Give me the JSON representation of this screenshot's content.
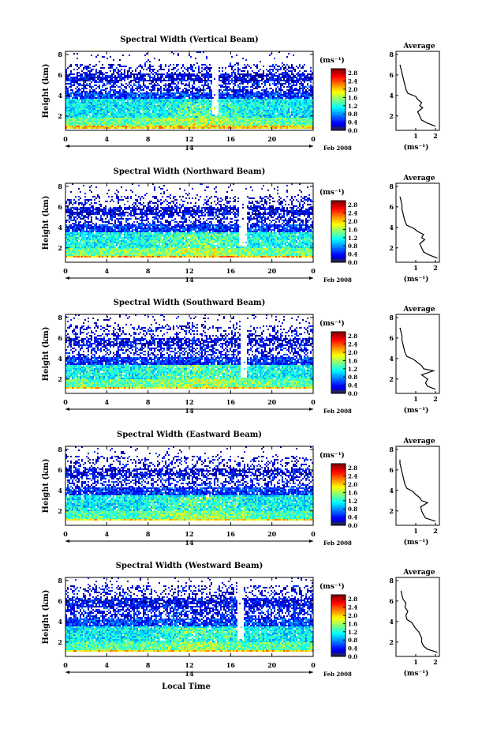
{
  "chart_data": [
    {
      "type": "heatmap",
      "title": "Spectral Width (Vertical Beam)",
      "ylabel": "Height (km)",
      "x_ticks": [
        "0",
        "4",
        "8",
        "12",
        "16",
        "20",
        "0"
      ],
      "y_ticks": [
        "2",
        "4",
        "6",
        "8"
      ],
      "xlim": [
        0,
        24
      ],
      "ylim": [
        0.6,
        8.3
      ],
      "date_day": "14",
      "date_label": "Feb 2008",
      "colorbar_unit": "(ms⁻¹)",
      "colorbar_ticks": [
        "0.0",
        "0.4",
        "0.8",
        "1.2",
        "1.6",
        "2.0",
        "2.4",
        "2.8"
      ],
      "colorbar_range": [
        0,
        3.0
      ],
      "average": {
        "title": "Average",
        "xlabel": "(ms⁻¹)",
        "x_ticks": [
          "1",
          "2"
        ],
        "y_ticks": [
          "2",
          "4",
          "6",
          "8"
        ],
        "xlim": [
          0,
          2.2
        ],
        "ylim": [
          0.6,
          8.3
        ],
        "height_km": [
          1.0,
          1.3,
          1.6,
          2.0,
          2.4,
          2.8,
          3.0,
          3.3,
          3.6,
          3.9,
          4.2,
          4.6,
          5.0,
          5.4,
          5.8,
          6.2,
          6.6,
          7.0
        ],
        "width_ms": [
          2.0,
          1.6,
          1.3,
          1.2,
          1.1,
          1.35,
          1.2,
          1.3,
          1.1,
          1.0,
          0.6,
          0.5,
          0.45,
          0.4,
          0.35,
          0.3,
          0.25,
          0.2
        ]
      },
      "field": {
        "base_height_km": 0.8,
        "near_ground_boost": 1.6,
        "layer_km": [
          {
            "from": 0.8,
            "to": 1.8,
            "mean": 1.4,
            "density": 1.0
          },
          {
            "from": 1.8,
            "to": 3.7,
            "mean": 1.1,
            "density": 0.97
          },
          {
            "from": 3.7,
            "to": 4.3,
            "mean": 0.55,
            "density": 0.93
          },
          {
            "from": 4.3,
            "to": 5.3,
            "mean": 0.35,
            "density": 0.55
          },
          {
            "from": 5.3,
            "to": 6.1,
            "mean": 0.3,
            "density": 0.85
          },
          {
            "from": 6.1,
            "to": 7.0,
            "mean": 0.25,
            "density": 0.35
          },
          {
            "from": 7.0,
            "to": 8.3,
            "mean": 0.2,
            "density": 0.04
          }
        ],
        "gap_hours": [
          [
            14.2,
            14.7
          ]
        ]
      }
    },
    {
      "type": "heatmap",
      "title": "Spectral Width (Northward Beam)",
      "ylabel": "Height (km)",
      "x_ticks": [
        "0",
        "4",
        "8",
        "12",
        "16",
        "20",
        "0"
      ],
      "y_ticks": [
        "2",
        "4",
        "6",
        "8"
      ],
      "xlim": [
        0,
        24
      ],
      "ylim": [
        0.6,
        8.3
      ],
      "date_day": "14",
      "date_label": "Feb 2008",
      "colorbar_unit": "(ms⁻¹)",
      "colorbar_ticks": [
        "0.0",
        "0.4",
        "0.8",
        "1.2",
        "1.6",
        "2.0",
        "2.4",
        "2.8"
      ],
      "colorbar_range": [
        0,
        3.0
      ],
      "average": {
        "title": "Average",
        "xlabel": "(ms⁻¹)",
        "x_ticks": [
          "1",
          "2"
        ],
        "y_ticks": [
          "2",
          "4",
          "6",
          "8"
        ],
        "xlim": [
          0,
          2.2
        ],
        "ylim": [
          0.6,
          8.3
        ],
        "height_km": [
          1.0,
          1.3,
          1.6,
          2.0,
          2.4,
          2.8,
          3.0,
          3.3,
          3.6,
          3.9,
          4.2,
          4.6,
          5.0,
          5.4,
          5.8,
          6.2,
          6.6,
          7.0
        ],
        "width_ms": [
          2.1,
          1.7,
          1.4,
          1.3,
          1.2,
          1.45,
          1.3,
          1.4,
          1.1,
          0.9,
          0.55,
          0.45,
          0.4,
          0.35,
          0.3,
          0.3,
          0.25,
          0.2
        ]
      },
      "field": {
        "base_height_km": 1.0,
        "near_ground_boost": 1.7,
        "layer_km": [
          {
            "from": 1.0,
            "to": 2.0,
            "mean": 1.45,
            "density": 1.0
          },
          {
            "from": 2.0,
            "to": 3.6,
            "mean": 1.15,
            "density": 0.96
          },
          {
            "from": 3.6,
            "to": 4.3,
            "mean": 0.5,
            "density": 0.9
          },
          {
            "from": 4.3,
            "to": 5.2,
            "mean": 0.35,
            "density": 0.5
          },
          {
            "from": 5.2,
            "to": 6.0,
            "mean": 0.3,
            "density": 0.8
          },
          {
            "from": 6.0,
            "to": 7.0,
            "mean": 0.25,
            "density": 0.3
          },
          {
            "from": 7.0,
            "to": 8.3,
            "mean": 0.2,
            "density": 0.06
          }
        ],
        "gap_hours": [
          [
            16.8,
            17.5
          ]
        ]
      }
    },
    {
      "type": "heatmap",
      "title": "Spectral Width (Southward Beam)",
      "ylabel": "Height (km)",
      "x_ticks": [
        "0",
        "4",
        "8",
        "12",
        "16",
        "20",
        "0"
      ],
      "y_ticks": [
        "2",
        "4",
        "6",
        "8"
      ],
      "xlim": [
        0,
        24
      ],
      "ylim": [
        0.6,
        8.3
      ],
      "date_day": "14",
      "date_label": "Feb 2008",
      "colorbar_unit": "(ms⁻¹)",
      "colorbar_ticks": [
        "0.0",
        "0.4",
        "0.8",
        "1.2",
        "1.6",
        "2.0",
        "2.4",
        "2.8"
      ],
      "colorbar_range": [
        0,
        3.0
      ],
      "average": {
        "title": "Average",
        "xlabel": "(ms⁻¹)",
        "x_ticks": [
          "1",
          "2"
        ],
        "y_ticks": [
          "2",
          "4",
          "6",
          "8"
        ],
        "xlim": [
          0,
          2.2
        ],
        "ylim": [
          0.6,
          8.3
        ],
        "height_km": [
          1.0,
          1.3,
          1.6,
          2.0,
          2.4,
          2.8,
          3.0,
          3.3,
          3.6,
          3.9,
          4.2,
          4.6,
          5.0,
          5.4,
          5.8,
          6.2,
          6.6,
          7.0
        ],
        "width_ms": [
          2.0,
          1.6,
          1.5,
          1.6,
          1.3,
          1.9,
          1.4,
          1.3,
          1.1,
          0.9,
          0.55,
          0.45,
          0.4,
          0.35,
          0.3,
          0.3,
          0.25,
          0.2
        ]
      },
      "field": {
        "base_height_km": 1.0,
        "near_ground_boost": 1.6,
        "layer_km": [
          {
            "from": 1.0,
            "to": 2.0,
            "mean": 1.4,
            "density": 1.0
          },
          {
            "from": 2.0,
            "to": 3.4,
            "mean": 1.15,
            "density": 0.95
          },
          {
            "from": 3.4,
            "to": 4.2,
            "mean": 0.5,
            "density": 0.92
          },
          {
            "from": 4.2,
            "to": 5.2,
            "mean": 0.35,
            "density": 0.45
          },
          {
            "from": 5.2,
            "to": 6.0,
            "mean": 0.3,
            "density": 0.75
          },
          {
            "from": 6.0,
            "to": 7.2,
            "mean": 0.25,
            "density": 0.3
          },
          {
            "from": 7.2,
            "to": 8.3,
            "mean": 0.2,
            "density": 0.08
          }
        ],
        "gap_hours": [
          [
            16.9,
            17.5
          ]
        ]
      }
    },
    {
      "type": "heatmap",
      "title": "Spectral Width (Eastward Beam)",
      "ylabel": "Height (km)",
      "x_ticks": [
        "0",
        "4",
        "8",
        "12",
        "16",
        "20",
        "0"
      ],
      "y_ticks": [
        "2",
        "4",
        "6",
        "8"
      ],
      "xlim": [
        0,
        24
      ],
      "ylim": [
        0.6,
        8.3
      ],
      "date_day": "14",
      "date_label": "Feb 2008",
      "colorbar_unit": "(ms⁻¹)",
      "colorbar_ticks": [
        "0.0",
        "0.4",
        "0.8",
        "1.2",
        "1.6",
        "2.0",
        "2.4",
        "2.8"
      ],
      "colorbar_range": [
        0,
        3.0
      ],
      "average": {
        "title": "Average",
        "xlabel": "(ms⁻¹)",
        "x_ticks": [
          "1",
          "2"
        ],
        "y_ticks": [
          "2",
          "4",
          "6",
          "8"
        ],
        "xlim": [
          0,
          2.2
        ],
        "ylim": [
          0.6,
          8.3
        ],
        "height_km": [
          1.0,
          1.3,
          1.6,
          2.0,
          2.4,
          2.8,
          3.0,
          3.3,
          3.6,
          3.9,
          4.2,
          4.6,
          5.0,
          5.4,
          5.8,
          6.2,
          6.6,
          7.0
        ],
        "width_ms": [
          2.0,
          1.5,
          1.4,
          1.3,
          1.25,
          1.6,
          1.3,
          1.2,
          1.0,
          0.85,
          0.55,
          0.45,
          0.4,
          0.35,
          0.3,
          0.25,
          0.2,
          0.2
        ]
      },
      "field": {
        "base_height_km": 1.0,
        "near_ground_boost": 1.5,
        "layer_km": [
          {
            "from": 1.0,
            "to": 2.0,
            "mean": 1.35,
            "density": 1.0
          },
          {
            "from": 2.0,
            "to": 3.6,
            "mean": 1.1,
            "density": 0.95
          },
          {
            "from": 3.6,
            "to": 4.3,
            "mean": 0.5,
            "density": 0.9
          },
          {
            "from": 4.3,
            "to": 5.3,
            "mean": 0.35,
            "density": 0.45
          },
          {
            "from": 5.3,
            "to": 6.1,
            "mean": 0.3,
            "density": 0.7
          },
          {
            "from": 6.1,
            "to": 7.3,
            "mean": 0.25,
            "density": 0.28
          },
          {
            "from": 7.3,
            "to": 8.3,
            "mean": 0.2,
            "density": 0.05
          }
        ],
        "gap_hours": []
      }
    },
    {
      "type": "heatmap",
      "title": "Spectral Width (Westward Beam)",
      "ylabel": "Height (km)",
      "xlabel": "Local Time",
      "x_ticks": [
        "0",
        "4",
        "8",
        "12",
        "16",
        "20",
        "0"
      ],
      "y_ticks": [
        "2",
        "4",
        "6",
        "8"
      ],
      "xlim": [
        0,
        24
      ],
      "ylim": [
        0.6,
        8.3
      ],
      "date_day": "14",
      "date_label": "Feb 2008",
      "colorbar_unit": "(ms⁻¹)",
      "colorbar_ticks": [
        "0.0",
        "0.4",
        "0.8",
        "1.2",
        "1.6",
        "2.0",
        "2.4",
        "2.8"
      ],
      "colorbar_range": [
        0,
        3.0
      ],
      "average": {
        "title": "Average",
        "xlabel": "(ms⁻¹)",
        "x_ticks": [
          "1",
          "2"
        ],
        "y_ticks": [
          "2",
          "4",
          "6",
          "8"
        ],
        "xlim": [
          0,
          2.2
        ],
        "ylim": [
          0.6,
          8.3
        ],
        "height_km": [
          1.0,
          1.3,
          1.6,
          2.0,
          2.4,
          2.8,
          3.0,
          3.3,
          3.6,
          3.9,
          4.2,
          4.6,
          5.0,
          5.4,
          5.8,
          6.2,
          6.6,
          7.0
        ],
        "width_ms": [
          2.1,
          1.6,
          1.4,
          1.3,
          1.3,
          1.2,
          1.15,
          1.0,
          0.9,
          0.8,
          0.55,
          0.5,
          0.6,
          0.45,
          0.5,
          0.35,
          0.3,
          0.25
        ]
      },
      "field": {
        "base_height_km": 1.0,
        "near_ground_boost": 1.6,
        "layer_km": [
          {
            "from": 1.0,
            "to": 2.0,
            "mean": 1.35,
            "density": 1.0
          },
          {
            "from": 2.0,
            "to": 3.5,
            "mean": 1.1,
            "density": 0.96
          },
          {
            "from": 3.5,
            "to": 4.3,
            "mean": 0.55,
            "density": 0.92
          },
          {
            "from": 4.3,
            "to": 5.4,
            "mean": 0.4,
            "density": 0.6
          },
          {
            "from": 5.4,
            "to": 6.3,
            "mean": 0.35,
            "density": 0.85
          },
          {
            "from": 6.3,
            "to": 7.5,
            "mean": 0.3,
            "density": 0.35
          },
          {
            "from": 7.5,
            "to": 8.3,
            "mean": 0.2,
            "density": 0.05
          }
        ],
        "gap_hours": [
          [
            16.6,
            17.2
          ]
        ]
      }
    }
  ]
}
